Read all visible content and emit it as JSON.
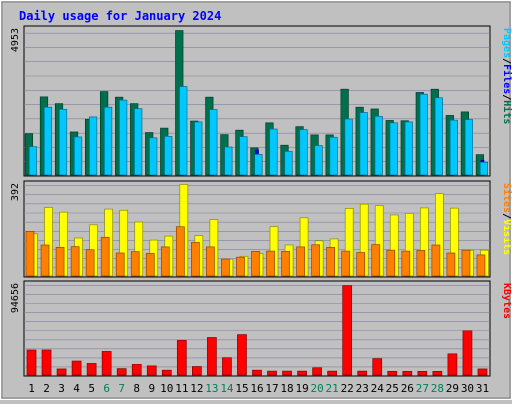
{
  "chart_data": {
    "type": "bar",
    "title": "Daily usage for January 2024",
    "categories": [
      "1",
      "2",
      "3",
      "4",
      "5",
      "6",
      "7",
      "8",
      "9",
      "10",
      "11",
      "12",
      "13",
      "14",
      "15",
      "16",
      "17",
      "18",
      "19",
      "20",
      "21",
      "22",
      "23",
      "24",
      "25",
      "26",
      "27",
      "28",
      "29",
      "30",
      "31"
    ],
    "weekend_days": [
      "6",
      "7",
      "13",
      "14",
      "20",
      "21",
      "27",
      "28"
    ],
    "panels": [
      {
        "name": "hits-files-pages",
        "ylabel_max": "4953",
        "ymax": 4953,
        "legend": [
          "Pages",
          "/",
          "Files",
          "/",
          "Hits"
        ],
        "series": [
          {
            "name": "Hits",
            "color": "#006f4e",
            "values": [
              1400,
              2650,
              2420,
              1460,
              1890,
              2830,
              2640,
              2420,
              1440,
              1590,
              4900,
              1830,
              2640,
              1370,
              1520,
              920,
              1770,
              1010,
              1640,
              1360,
              1360,
              2910,
              2300,
              2240,
              1850,
              1840,
              2800,
              2910,
              2020,
              2140,
              690
            ]
          },
          {
            "name": "Files",
            "color": "#0000ff",
            "values": [
              700,
              700,
              700,
              700,
              700,
              700,
              700,
              700,
              700,
              700,
              700,
              700,
              700,
              700,
              850,
              850,
              700,
              700,
              700,
              700,
              700,
              700,
              700,
              700,
              700,
              700,
              700,
              700,
              700,
              700,
              500
            ]
          },
          {
            "name": "Pages",
            "color": "#00c8ff",
            "values": [
              960,
              2300,
              2230,
              1290,
              1970,
              2300,
              2540,
              2250,
              1260,
              1310,
              3000,
              1800,
              2220,
              950,
              1300,
              700,
              1560,
              800,
              1540,
              1000,
              1280,
              1900,
              2120,
              1990,
              1770,
              1800,
              2740,
              2620,
              1860,
              1880,
              430
            ]
          }
        ]
      },
      {
        "name": "visits-sites",
        "ylabel_max": "392",
        "ymax": 392,
        "legend": [
          "Sites",
          "/",
          "Visits"
        ],
        "series": [
          {
            "name": "Visits",
            "color": "#ffff00",
            "values": [
              180,
              292,
              272,
              162,
              218,
              285,
              280,
              230,
              153,
              170,
              390,
              172,
              240,
              72,
              84,
              96,
              210,
              132,
              248,
              150,
              158,
              288,
              306,
              300,
              260,
              267,
              290,
              351,
              289,
              109,
              110
            ]
          },
          {
            "name": "Sites",
            "color": "#ff8000",
            "values": [
              190,
              132,
              122,
              125,
              112,
              165,
              98,
              104,
              96,
              124,
              210,
              143,
              124,
              72,
              80,
              105,
              106,
              105,
              124,
              133,
              122,
              106,
              100,
              134,
              110,
              106,
              109,
              132,
              98,
              110,
              90
            ]
          }
        ]
      },
      {
        "name": "kbytes",
        "ylabel_max": "94656",
        "ymax": 94656,
        "legend": [
          "KBytes"
        ],
        "series": [
          {
            "name": "KBytes",
            "color": "#ff0000",
            "values": [
              26000,
              26000,
              6300,
              14500,
              12000,
              24500,
              6600,
              11000,
              9500,
              5000,
              36000,
              8800,
              39000,
              18000,
              42000,
              5000,
              4000,
              4000,
              4000,
              7500,
              4000,
              93000,
              4000,
              17000,
              3800,
              3800,
              3800,
              3800,
              22000,
              46000,
              6300
            ]
          }
        ]
      }
    ]
  },
  "colors": {
    "background": "#c0c0c0",
    "plot_bg": "#c0c0c0",
    "gridline": "#8080a0",
    "title": "#0000ff",
    "weekend_label": "#00805c",
    "weekday_label": "#000000"
  }
}
